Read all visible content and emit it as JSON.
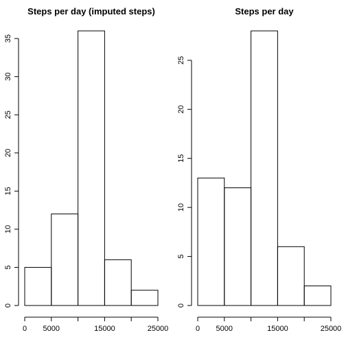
{
  "chart_data": [
    {
      "type": "bar",
      "title": "Steps per day (imputed steps)",
      "xlabel": "",
      "ylabel": "",
      "bins": [
        [
          0,
          5000
        ],
        [
          5000,
          10000
        ],
        [
          10000,
          15000
        ],
        [
          15000,
          20000
        ],
        [
          20000,
          25000
        ]
      ],
      "values": [
        5,
        12,
        36,
        6,
        2
      ],
      "xlim": [
        0,
        25000
      ],
      "ylim": [
        0,
        36
      ],
      "x_ticks": [
        0,
        5000,
        10000,
        15000,
        20000,
        25000
      ],
      "x_tick_labels": [
        "0",
        "5000",
        "",
        "15000",
        "",
        "25000"
      ],
      "y_ticks": [
        0,
        5,
        10,
        15,
        20,
        25,
        30,
        35
      ],
      "y_tick_labels": [
        "0",
        "5",
        "10",
        "15",
        "20",
        "25",
        "30",
        "35"
      ],
      "grid": false
    },
    {
      "type": "bar",
      "title": "Steps per day",
      "xlabel": "",
      "ylabel": "",
      "bins": [
        [
          0,
          5000
        ],
        [
          5000,
          10000
        ],
        [
          10000,
          15000
        ],
        [
          15000,
          20000
        ],
        [
          20000,
          25000
        ]
      ],
      "values": [
        13,
        12,
        28,
        6,
        2
      ],
      "xlim": [
        0,
        25000
      ],
      "ylim": [
        0,
        28
      ],
      "x_ticks": [
        0,
        5000,
        10000,
        15000,
        20000,
        25000
      ],
      "x_tick_labels": [
        "0",
        "5000",
        "",
        "15000",
        "",
        "25000"
      ],
      "y_ticks": [
        0,
        5,
        10,
        15,
        20,
        25
      ],
      "y_tick_labels": [
        "0",
        "5",
        "10",
        "15",
        "20",
        "25"
      ],
      "grid": false
    }
  ]
}
